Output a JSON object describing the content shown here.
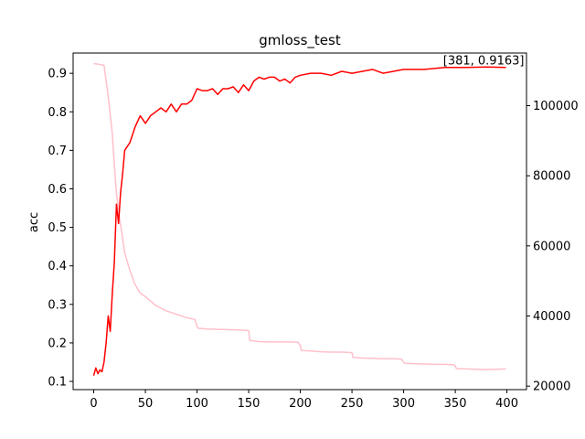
{
  "chart_data": {
    "type": "line",
    "title": "gmloss_test",
    "xlabel": "",
    "ylabel": "acc",
    "y2label": "",
    "xlim": [
      -19.95,
      418.95
    ],
    "ylim": [
      0.0787,
      0.9526
    ],
    "y2lim": [
      19000,
      115000
    ],
    "xticks": [
      0,
      50,
      100,
      150,
      200,
      250,
      300,
      350,
      400
    ],
    "yticks": [
      0.1,
      0.2,
      0.3,
      0.4,
      0.5,
      0.6,
      0.7,
      0.8,
      0.9
    ],
    "y2ticks": [
      20000,
      40000,
      60000,
      80000,
      100000
    ],
    "annotation": "[381, 0.9163]",
    "grid": false,
    "series": [
      {
        "axis": "left",
        "color": "#ff0000",
        "x": [
          0,
          2,
          4,
          6,
          8,
          10,
          12,
          14,
          16,
          18,
          20,
          22,
          24,
          26,
          28,
          30,
          35,
          40,
          45,
          50,
          55,
          60,
          65,
          70,
          75,
          80,
          85,
          90,
          95,
          100,
          105,
          110,
          115,
          120,
          125,
          130,
          135,
          140,
          145,
          150,
          155,
          160,
          165,
          170,
          175,
          180,
          185,
          190,
          195,
          200,
          210,
          220,
          230,
          240,
          250,
          260,
          270,
          280,
          290,
          300,
          320,
          340,
          360,
          381,
          399
        ],
        "y": [
          0.115,
          0.135,
          0.12,
          0.13,
          0.125,
          0.15,
          0.2,
          0.27,
          0.23,
          0.33,
          0.41,
          0.56,
          0.51,
          0.59,
          0.64,
          0.7,
          0.72,
          0.76,
          0.79,
          0.77,
          0.79,
          0.8,
          0.81,
          0.8,
          0.82,
          0.8,
          0.82,
          0.82,
          0.83,
          0.86,
          0.855,
          0.855,
          0.86,
          0.845,
          0.86,
          0.86,
          0.865,
          0.85,
          0.87,
          0.855,
          0.88,
          0.89,
          0.885,
          0.89,
          0.89,
          0.88,
          0.885,
          0.875,
          0.89,
          0.895,
          0.9,
          0.9,
          0.895,
          0.905,
          0.9,
          0.905,
          0.91,
          0.9,
          0.905,
          0.91,
          0.91,
          0.915,
          0.915,
          0.9163,
          0.915
        ]
      },
      {
        "axis": "right",
        "color": "#ffc0cb",
        "x": [
          0,
          5,
          10,
          13,
          15,
          18,
          20,
          22,
          25,
          28,
          30,
          35,
          40,
          45,
          50,
          60,
          70,
          80,
          90,
          98,
          100,
          101,
          110,
          120,
          130,
          140,
          148,
          150,
          151,
          160,
          170,
          180,
          190,
          198,
          200,
          201,
          210,
          220,
          230,
          240,
          248,
          250,
          251,
          260,
          270,
          280,
          290,
          298,
          300,
          301,
          310,
          320,
          330,
          340,
          348,
          350,
          351,
          360,
          370,
          380,
          390,
          399
        ],
        "y": [
          112000,
          111800,
          111500,
          105000,
          100000,
          92000,
          83000,
          75000,
          68000,
          62000,
          58000,
          53000,
          49000,
          46500,
          45500,
          43000,
          41500,
          40500,
          39500,
          39000,
          37000,
          36500,
          36300,
          36200,
          36100,
          36000,
          35900,
          35800,
          33000,
          32700,
          32600,
          32600,
          32600,
          32500,
          31500,
          30200,
          30000,
          29800,
          29700,
          29700,
          29600,
          29500,
          28200,
          28000,
          27900,
          27800,
          27800,
          27700,
          26800,
          26500,
          26400,
          26300,
          26200,
          26200,
          26100,
          25800,
          25000,
          24900,
          24800,
          24700,
          24800,
          24900
        ]
      }
    ]
  }
}
